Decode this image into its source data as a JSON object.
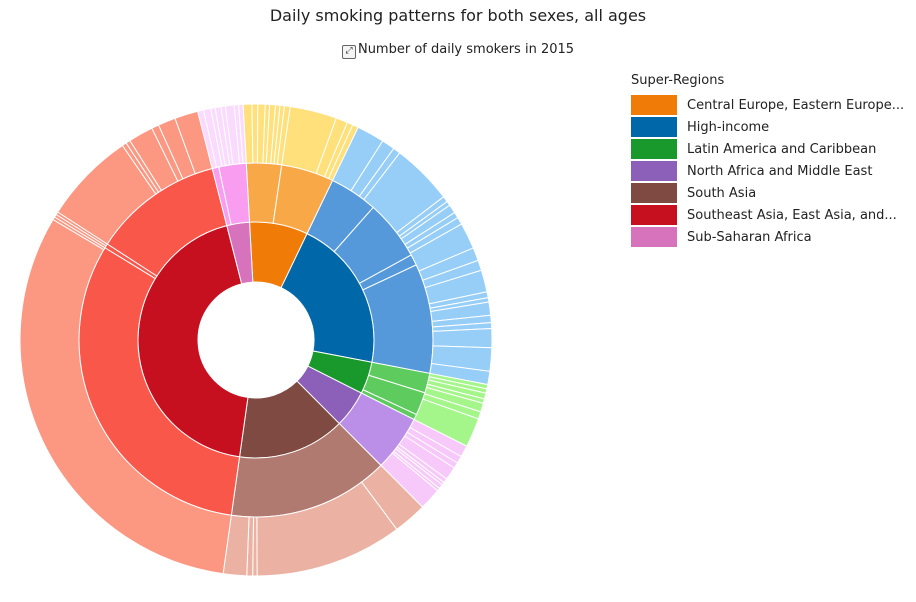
{
  "title": "Daily smoking patterns for both sexes, all ages",
  "subtitle": "Number of daily smokers in 2015",
  "expand_icon": "expand-icon",
  "legend": {
    "title": "Super-Regions",
    "items": [
      {
        "label": "Central Europe, Eastern Europe...",
        "color": "#f07b06"
      },
      {
        "label": "High-income",
        "color": "#0068a8"
      },
      {
        "label": "Latin America and Caribbean",
        "color": "#19992b"
      },
      {
        "label": "North Africa and Middle East",
        "color": "#8c5fb8"
      },
      {
        "label": "South Asia",
        "color": "#7f4a42"
      },
      {
        "label": "Southeast Asia, East Asia, and...",
        "color": "#c7101f"
      },
      {
        "label": "Sub-Saharan Africa",
        "color": "#d772bd"
      }
    ]
  },
  "chart_data": {
    "type": "sunburst",
    "title": "Daily smoking patterns for both sexes, all ages",
    "subtitle": "Number of daily smokers in 2015",
    "legend_title": "Super-Regions",
    "legend_position": "right",
    "rings": [
      {
        "level": "super-region",
        "segments": [
          {
            "group": "Central Europe, Eastern Europe...",
            "value": 8.0,
            "color": "#f07b06"
          },
          {
            "group": "High-income",
            "value": 20.9,
            "color": "#0068a8"
          },
          {
            "group": "Latin America and Caribbean",
            "value": 4.4,
            "color": "#19992b"
          },
          {
            "group": "North Africa and Middle East",
            "value": 5.1,
            "color": "#8c5fb8"
          },
          {
            "group": "South Asia",
            "value": 14.7,
            "color": "#7f4a42"
          },
          {
            "group": "Southeast Asia, East Asia, and...",
            "value": 43.8,
            "color": "#c7101f"
          },
          {
            "group": "Sub-Saharan Africa",
            "value": 3.1,
            "color": "#d772bd"
          }
        ]
      },
      {
        "level": "region",
        "segments": [
          {
            "group": "Central Europe, Eastern Europe...",
            "value": 3.2,
            "color": "#f9a848"
          },
          {
            "group": "Central Europe, Eastern Europe...",
            "value": 4.8,
            "color": "#f9a848"
          },
          {
            "group": "High-income",
            "value": 4.4,
            "color": "#5599da"
          },
          {
            "group": "High-income",
            "value": 5.5,
            "color": "#5599da"
          },
          {
            "group": "High-income",
            "value": 1.0,
            "color": "#5599da"
          },
          {
            "group": "High-income",
            "value": 10.0,
            "color": "#5599da"
          },
          {
            "group": "Latin America and Caribbean",
            "value": 1.8,
            "color": "#5dcb5d"
          },
          {
            "group": "Latin America and Caribbean",
            "value": 2.1,
            "color": "#5dcb5d"
          },
          {
            "group": "Latin America and Caribbean",
            "value": 0.5,
            "color": "#5dcb5d"
          },
          {
            "group": "North Africa and Middle East",
            "value": 5.1,
            "color": "#bb8ee8"
          },
          {
            "group": "South Asia",
            "value": 14.7,
            "color": "#b07a70"
          },
          {
            "group": "Southeast Asia, East Asia, and...",
            "value": 31.5,
            "color": "#fa574b"
          },
          {
            "group": "Southeast Asia, East Asia, and...",
            "value": 0.4,
            "color": "#fa574b"
          },
          {
            "group": "Southeast Asia, East Asia, and...",
            "value": 11.9,
            "color": "#fa574b"
          },
          {
            "group": "Sub-Saharan Africa",
            "value": 0.6,
            "color": "#f89df0"
          },
          {
            "group": "Sub-Saharan Africa",
            "value": 2.5,
            "color": "#f89df0"
          }
        ]
      },
      {
        "level": "country",
        "segments": [
          {
            "group": "Central Europe, Eastern Europe...",
            "value": 0.6,
            "color": "#ffe07a"
          },
          {
            "group": "Central Europe, Eastern Europe...",
            "value": 0.4,
            "color": "#ffe07a"
          },
          {
            "group": "Central Europe, Eastern Europe...",
            "value": 0.5,
            "color": "#ffe07a"
          },
          {
            "group": "Central Europe, Eastern Europe...",
            "value": 0.3,
            "color": "#ffe07a"
          },
          {
            "group": "Central Europe, Eastern Europe...",
            "value": 0.4,
            "color": "#ffe07a"
          },
          {
            "group": "Central Europe, Eastern Europe...",
            "value": 0.3,
            "color": "#ffe07a"
          },
          {
            "group": "Central Europe, Eastern Europe...",
            "value": 0.3,
            "color": "#ffe07a"
          },
          {
            "group": "Central Europe, Eastern Europe...",
            "value": 0.4,
            "color": "#ffe07a"
          },
          {
            "group": "Central Europe, Eastern Europe...",
            "value": 3.2,
            "color": "#ffe07a"
          },
          {
            "group": "Central Europe, Eastern Europe...",
            "value": 0.8,
            "color": "#ffe07a"
          },
          {
            "group": "Central Europe, Eastern Europe...",
            "value": 0.4,
            "color": "#ffe07a"
          },
          {
            "group": "Central Europe, Eastern Europe...",
            "value": 0.4,
            "color": "#ffe07a"
          },
          {
            "group": "High-income",
            "value": 1.9,
            "color": "#97cef7"
          },
          {
            "group": "High-income",
            "value": 0.9,
            "color": "#97cef7"
          },
          {
            "group": "High-income",
            "value": 0.5,
            "color": "#97cef7"
          },
          {
            "group": "High-income",
            "value": 4.2,
            "color": "#97cef7"
          },
          {
            "group": "High-income",
            "value": 0.4,
            "color": "#97cef7"
          },
          {
            "group": "High-income",
            "value": 0.3,
            "color": "#97cef7"
          },
          {
            "group": "High-income",
            "value": 0.6,
            "color": "#97cef7"
          },
          {
            "group": "High-income",
            "value": 0.4,
            "color": "#97cef7"
          },
          {
            "group": "High-income",
            "value": 0.5,
            "color": "#97cef7"
          },
          {
            "group": "High-income",
            "value": 1.8,
            "color": "#97cef7"
          },
          {
            "group": "High-income",
            "value": 0.9,
            "color": "#97cef7"
          },
          {
            "group": "High-income",
            "value": 0.7,
            "color": "#97cef7"
          },
          {
            "group": "High-income",
            "value": 1.5,
            "color": "#97cef7"
          },
          {
            "group": "High-income",
            "value": 0.4,
            "color": "#97cef7"
          },
          {
            "group": "High-income",
            "value": 0.3,
            "color": "#97cef7"
          },
          {
            "group": "High-income",
            "value": 0.9,
            "color": "#97cef7"
          },
          {
            "group": "High-income",
            "value": 0.5,
            "color": "#97cef7"
          },
          {
            "group": "High-income",
            "value": 0.4,
            "color": "#97cef7"
          },
          {
            "group": "High-income",
            "value": 1.3,
            "color": "#97cef7"
          },
          {
            "group": "High-income",
            "value": 1.6,
            "color": "#97cef7"
          },
          {
            "group": "High-income",
            "value": 0.9,
            "color": "#97cef7"
          },
          {
            "group": "Latin America and Caribbean",
            "value": 0.3,
            "color": "#a4f58a"
          },
          {
            "group": "Latin America and Caribbean",
            "value": 0.3,
            "color": "#a4f58a"
          },
          {
            "group": "Latin America and Caribbean",
            "value": 0.4,
            "color": "#a4f58a"
          },
          {
            "group": "Latin America and Caribbean",
            "value": 0.3,
            "color": "#a4f58a"
          },
          {
            "group": "Latin America and Caribbean",
            "value": 0.6,
            "color": "#a4f58a"
          },
          {
            "group": "Latin America and Caribbean",
            "value": 0.5,
            "color": "#a4f58a"
          },
          {
            "group": "Latin America and Caribbean",
            "value": 2.0,
            "color": "#a4f58a"
          },
          {
            "group": "North Africa and Middle East",
            "value": 0.8,
            "color": "#f7c9fa"
          },
          {
            "group": "North Africa and Middle East",
            "value": 0.5,
            "color": "#f7c9fa"
          },
          {
            "group": "North Africa and Middle East",
            "value": 0.4,
            "color": "#f7c9fa"
          },
          {
            "group": "North Africa and Middle East",
            "value": 0.9,
            "color": "#f7c9fa"
          },
          {
            "group": "North Africa and Middle East",
            "value": 0.3,
            "color": "#f7c9fa"
          },
          {
            "group": "North Africa and Middle East",
            "value": 0.2,
            "color": "#f7c9fa"
          },
          {
            "group": "North Africa and Middle East",
            "value": 0.3,
            "color": "#f7c9fa"
          },
          {
            "group": "North Africa and Middle East",
            "value": 0.2,
            "color": "#f7c9fa"
          },
          {
            "group": "North Africa and Middle East",
            "value": 1.5,
            "color": "#f7c9fa"
          },
          {
            "group": "South Asia",
            "value": 2.3,
            "color": "#ebb1a2"
          },
          {
            "group": "South Asia",
            "value": 10.1,
            "color": "#ebb1a2"
          },
          {
            "group": "South Asia",
            "value": 0.3,
            "color": "#ebb1a2"
          },
          {
            "group": "South Asia",
            "value": 0.4,
            "color": "#ebb1a2"
          },
          {
            "group": "South Asia",
            "value": 1.6,
            "color": "#ebb1a2"
          },
          {
            "group": "Southeast Asia, East Asia, and...",
            "value": 31.3,
            "color": "#fc9782"
          },
          {
            "group": "Southeast Asia, East Asia, and...",
            "value": 0.2,
            "color": "#fc9782"
          },
          {
            "group": "Southeast Asia, East Asia, and...",
            "value": 0.2,
            "color": "#fc9782"
          },
          {
            "group": "Southeast Asia, East Asia, and...",
            "value": 0.2,
            "color": "#fc9782"
          },
          {
            "group": "Southeast Asia, East Asia, and...",
            "value": 6.3,
            "color": "#fc9782"
          },
          {
            "group": "Southeast Asia, East Asia, and...",
            "value": 0.3,
            "color": "#fc9782"
          },
          {
            "group": "Southeast Asia, East Asia, and...",
            "value": 0.3,
            "color": "#fc9782"
          },
          {
            "group": "Southeast Asia, East Asia, and...",
            "value": 1.7,
            "color": "#fc9782"
          },
          {
            "group": "Southeast Asia, East Asia, and...",
            "value": 0.5,
            "color": "#fc9782"
          },
          {
            "group": "Southeast Asia, East Asia, and...",
            "value": 1.2,
            "color": "#fc9782"
          },
          {
            "group": "Southeast Asia, East Asia, and...",
            "value": 1.6,
            "color": "#fc9782"
          },
          {
            "group": "Sub-Saharan Africa",
            "value": 0.4,
            "color": "#fbdaff"
          },
          {
            "group": "Sub-Saharan Africa",
            "value": 0.5,
            "color": "#fbdaff"
          },
          {
            "group": "Sub-Saharan Africa",
            "value": 0.3,
            "color": "#fbdaff"
          },
          {
            "group": "Sub-Saharan Africa",
            "value": 0.4,
            "color": "#fbdaff"
          },
          {
            "group": "Sub-Saharan Africa",
            "value": 0.3,
            "color": "#fbdaff"
          },
          {
            "group": "Sub-Saharan Africa",
            "value": 0.6,
            "color": "#fbdaff"
          },
          {
            "group": "Sub-Saharan Africa",
            "value": 0.3,
            "color": "#fbdaff"
          },
          {
            "group": "Sub-Saharan Africa",
            "value": 0.3,
            "color": "#fbdaff"
          }
        ]
      }
    ]
  }
}
